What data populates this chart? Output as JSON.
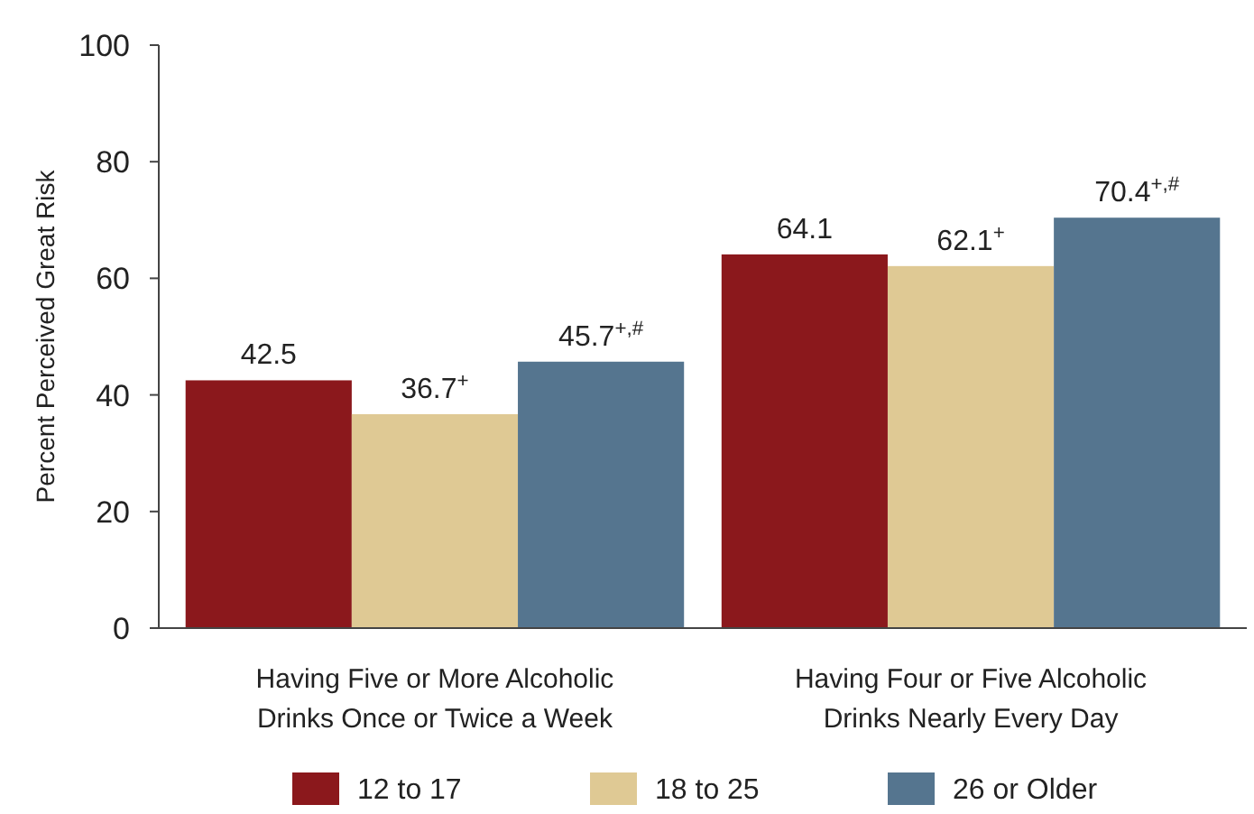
{
  "chart_data": {
    "type": "bar",
    "ylabel": "Percent Perceived Great Risk",
    "categories": [
      "Having Five or More Alcoholic Drinks Once or Twice a Week",
      "Having Four or Five Alcoholic Drinks Nearly Every Day"
    ],
    "series": [
      {
        "name": "12 to 17",
        "color": "#8b181c",
        "values": [
          42.5,
          64.1
        ],
        "value_labels": [
          "42.5",
          "64.1"
        ]
      },
      {
        "name": "18 to 25",
        "color": "#dfc994",
        "values": [
          36.7,
          62.1
        ],
        "value_labels": [
          "36.7$^{+}$",
          "62.1$^{+}$"
        ]
      },
      {
        "name": "26 or Older",
        "color": "#55758f",
        "values": [
          45.7,
          70.4
        ],
        "value_labels": [
          "45.7$^{+,#}$",
          "70.4$^{+,#}$"
        ]
      }
    ],
    "ylim": [
      0,
      100
    ],
    "yticks": [
      0,
      20,
      40,
      60,
      80,
      100
    ],
    "grid": false,
    "legend": "bottom"
  }
}
